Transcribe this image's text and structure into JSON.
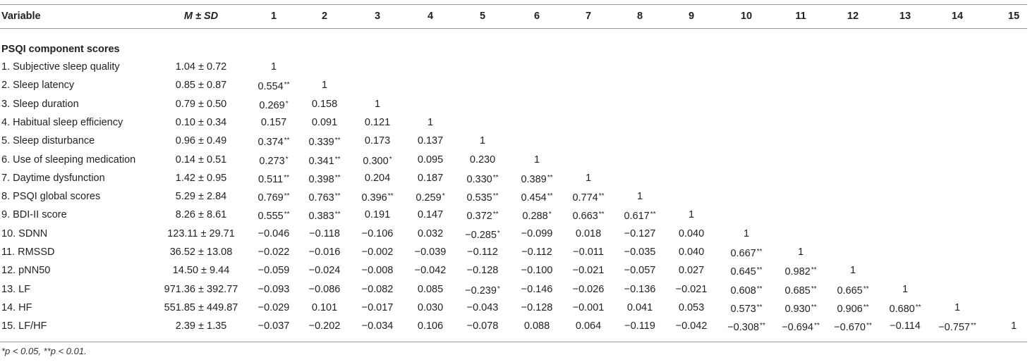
{
  "header": {
    "variable": "Variable",
    "msd": "M ± SD",
    "cols": [
      "1",
      "2",
      "3",
      "4",
      "5",
      "6",
      "7",
      "8",
      "9",
      "10",
      "11",
      "12",
      "13",
      "14",
      "15"
    ]
  },
  "section": "PSQI component scores",
  "rows": [
    {
      "label": "1. Subjective sleep quality",
      "msd": "1.04 ± 0.72",
      "cells": [
        "1"
      ]
    },
    {
      "label": "2. Sleep latency",
      "msd": "0.85 ± 0.87",
      "cells": [
        "0.554**",
        "1"
      ]
    },
    {
      "label": "3. Sleep duration",
      "msd": "0.79 ± 0.50",
      "cells": [
        "0.269*",
        "0.158",
        "1"
      ]
    },
    {
      "label": "4. Habitual sleep efficiency",
      "msd": "0.10 ± 0.34",
      "cells": [
        "0.157",
        "0.091",
        "0.121",
        "1"
      ]
    },
    {
      "label": "5. Sleep disturbance",
      "msd": "0.96 ± 0.49",
      "cells": [
        "0.374**",
        "0.339**",
        "0.173",
        "0.137",
        "1"
      ]
    },
    {
      "label": "6. Use of sleeping medication",
      "msd": "0.14 ± 0.51",
      "cells": [
        "0.273*",
        "0.341**",
        "0.300*",
        "0.095",
        "0.230",
        "1"
      ]
    },
    {
      "label": "7. Daytime dysfunction",
      "msd": "1.42 ± 0.95",
      "cells": [
        "0.511**",
        "0.398**",
        "0.204",
        "0.187",
        "0.330**",
        "0.389**",
        "1"
      ]
    },
    {
      "label": "8. PSQI global scores",
      "msd": "5.29 ± 2.84",
      "cells": [
        "0.769**",
        "0.763**",
        "0.396**",
        "0.259*",
        "0.535**",
        "0.454**",
        "0.774**",
        "1"
      ]
    },
    {
      "label": "9. BDI-II score",
      "msd": "8.26 ± 8.61",
      "cells": [
        "0.555**",
        "0.383**",
        "0.191",
        "0.147",
        "0.372**",
        "0.288*",
        "0.663**",
        "0.617**",
        "1"
      ]
    },
    {
      "label": "10. SDNN",
      "msd": "123.11 ± 29.71",
      "cells": [
        "−0.046",
        "−0.118",
        "−0.106",
        "0.032",
        "−0.285*",
        "−0.099",
        "0.018",
        "−0.127",
        "0.040",
        "1"
      ]
    },
    {
      "label": "11. RMSSD",
      "msd": "36.52 ± 13.08",
      "cells": [
        "−0.022",
        "−0.016",
        "−0.002",
        "−0.039",
        "−0.112",
        "−0.112",
        "−0.011",
        "−0.035",
        "0.040",
        "0.667**",
        "1"
      ]
    },
    {
      "label": "12. pNN50",
      "msd": "14.50 ± 9.44",
      "cells": [
        "−0.059",
        "−0.024",
        "−0.008",
        "−0.042",
        "−0.128",
        "−0.100",
        "−0.021",
        "−0.057",
        "0.027",
        "0.645**",
        "0.982**",
        "1"
      ]
    },
    {
      "label": "13. LF",
      "msd": "971.36 ± 392.77",
      "cells": [
        "−0.093",
        "−0.086",
        "−0.082",
        "0.085",
        "−0.239*",
        "−0.146",
        "−0.026",
        "−0.136",
        "−0.021",
        "0.608**",
        "0.685**",
        "0.665**",
        "1"
      ]
    },
    {
      "label": "14. HF",
      "msd": "551.85 ± 449.87",
      "cells": [
        "−0.029",
        "0.101",
        "−0.017",
        "0.030",
        "−0.043",
        "−0.128",
        "−0.001",
        "0.041",
        "0.053",
        "0.573**",
        "0.930**",
        "0.906**",
        "0.680**",
        "1"
      ]
    },
    {
      "label": "15. LF/HF",
      "msd": "2.39 ± 1.35",
      "cells": [
        "−0.037",
        "−0.202",
        "−0.034",
        "0.106",
        "−0.078",
        "0.088",
        "0.064",
        "−0.119",
        "−0.042",
        "−0.308**",
        "−0.694**",
        "−0.670**",
        "−0.114",
        "−0.757**",
        "1"
      ]
    }
  ],
  "footnote": "*p < 0.05, **p < 0.01."
}
